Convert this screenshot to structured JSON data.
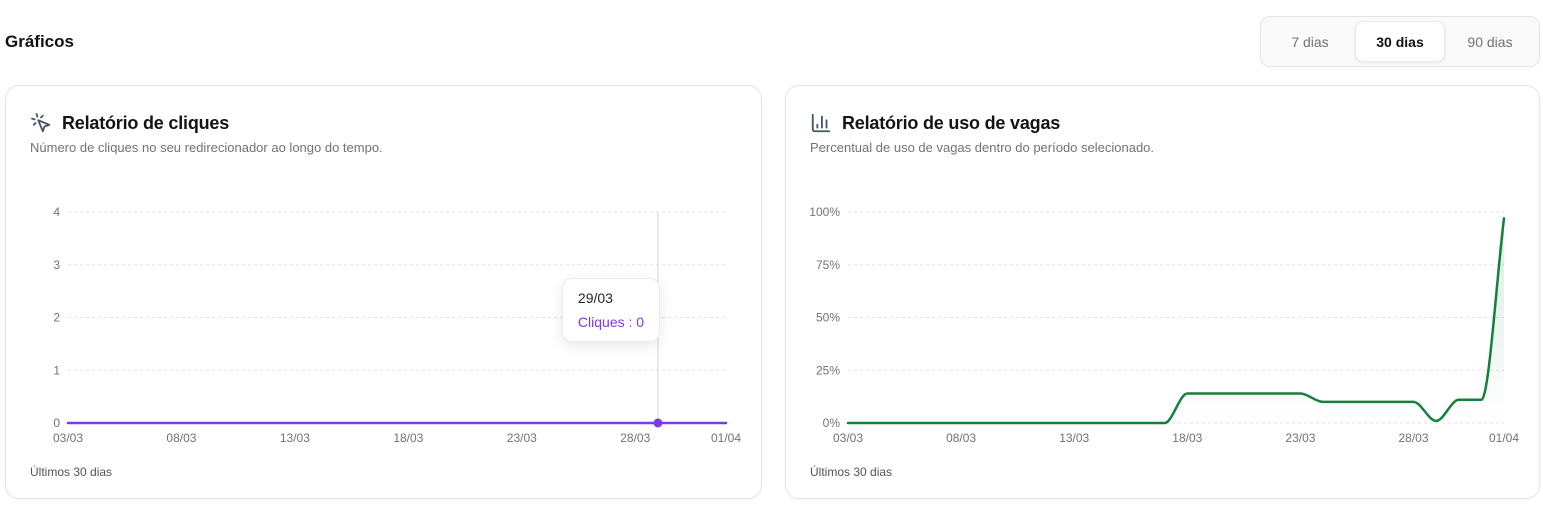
{
  "page_title": "Gráficos",
  "period_selector": {
    "options": [
      {
        "label": "7 dias",
        "selected": false
      },
      {
        "label": "30 dias",
        "selected": true
      },
      {
        "label": "90 dias",
        "selected": false
      }
    ]
  },
  "chart_data": [
    {
      "type": "line",
      "title": "Relatório de cliques",
      "subtitle": "Número de cliques no seu redirecionador ao longo do tempo.",
      "footer": "Últimos 30 dias",
      "icon": "mouse-pointer-click-icon",
      "line_color": "#7c3aed",
      "grid": "horizontal-dashed",
      "legend": "none",
      "ylim": [
        0,
        4
      ],
      "y_ticks": [
        0,
        1,
        2,
        3,
        4
      ],
      "y_tick_labels": [
        "0",
        "1",
        "2",
        "3",
        "4"
      ],
      "x": [
        "03/03",
        "04/03",
        "05/03",
        "06/03",
        "07/03",
        "08/03",
        "09/03",
        "10/03",
        "11/03",
        "12/03",
        "13/03",
        "14/03",
        "15/03",
        "16/03",
        "17/03",
        "18/03",
        "19/03",
        "20/03",
        "21/03",
        "22/03",
        "23/03",
        "24/03",
        "25/03",
        "26/03",
        "27/03",
        "28/03",
        "29/03",
        "30/03",
        "31/03",
        "01/04"
      ],
      "x_tick_indices": [
        0,
        5,
        10,
        15,
        20,
        25,
        29
      ],
      "x_tick_labels": [
        "03/03",
        "08/03",
        "13/03",
        "18/03",
        "23/03",
        "28/03",
        "01/04"
      ],
      "series": [
        {
          "name": "Cliques",
          "values": [
            0,
            0,
            0,
            0,
            0,
            0,
            0,
            0,
            0,
            0,
            0,
            0,
            0,
            0,
            0,
            0,
            0,
            0,
            0,
            0,
            0,
            0,
            0,
            0,
            0,
            0,
            0,
            0,
            0,
            0
          ]
        }
      ],
      "tooltip": {
        "x_label": "29/03",
        "x_index": 26,
        "series": "Cliques",
        "value": 0,
        "text": "Cliques : 0"
      }
    },
    {
      "type": "line",
      "title": "Relatório de uso de vagas",
      "subtitle": "Percentual de uso de vagas dentro do período selecionado.",
      "footer": "Últimos 30 dias",
      "icon": "bar-chart-icon",
      "line_color": "#15803d",
      "grid": "horizontal-dashed",
      "legend": "none",
      "ylim": [
        0,
        100
      ],
      "y_ticks": [
        0,
        25,
        50,
        75,
        100
      ],
      "y_tick_labels": [
        "0%",
        "25%",
        "50%",
        "75%",
        "100%"
      ],
      "x": [
        "03/03",
        "04/03",
        "05/03",
        "06/03",
        "07/03",
        "08/03",
        "09/03",
        "10/03",
        "11/03",
        "12/03",
        "13/03",
        "14/03",
        "15/03",
        "16/03",
        "17/03",
        "18/03",
        "19/03",
        "20/03",
        "21/03",
        "22/03",
        "23/03",
        "24/03",
        "25/03",
        "26/03",
        "27/03",
        "28/03",
        "29/03",
        "30/03",
        "31/03",
        "01/04"
      ],
      "x_tick_indices": [
        0,
        5,
        10,
        15,
        20,
        25,
        29
      ],
      "x_tick_labels": [
        "03/03",
        "08/03",
        "13/03",
        "18/03",
        "23/03",
        "28/03",
        "01/04"
      ],
      "series": [
        {
          "name": "Uso de vagas (%)",
          "values": [
            0,
            0,
            0,
            0,
            0,
            0,
            0,
            0,
            0,
            0,
            0,
            0,
            0,
            0,
            0,
            14,
            14,
            14,
            14,
            14,
            14,
            10,
            10,
            10,
            10,
            10,
            1,
            11,
            11,
            97
          ]
        }
      ],
      "tooltip": null
    }
  ]
}
